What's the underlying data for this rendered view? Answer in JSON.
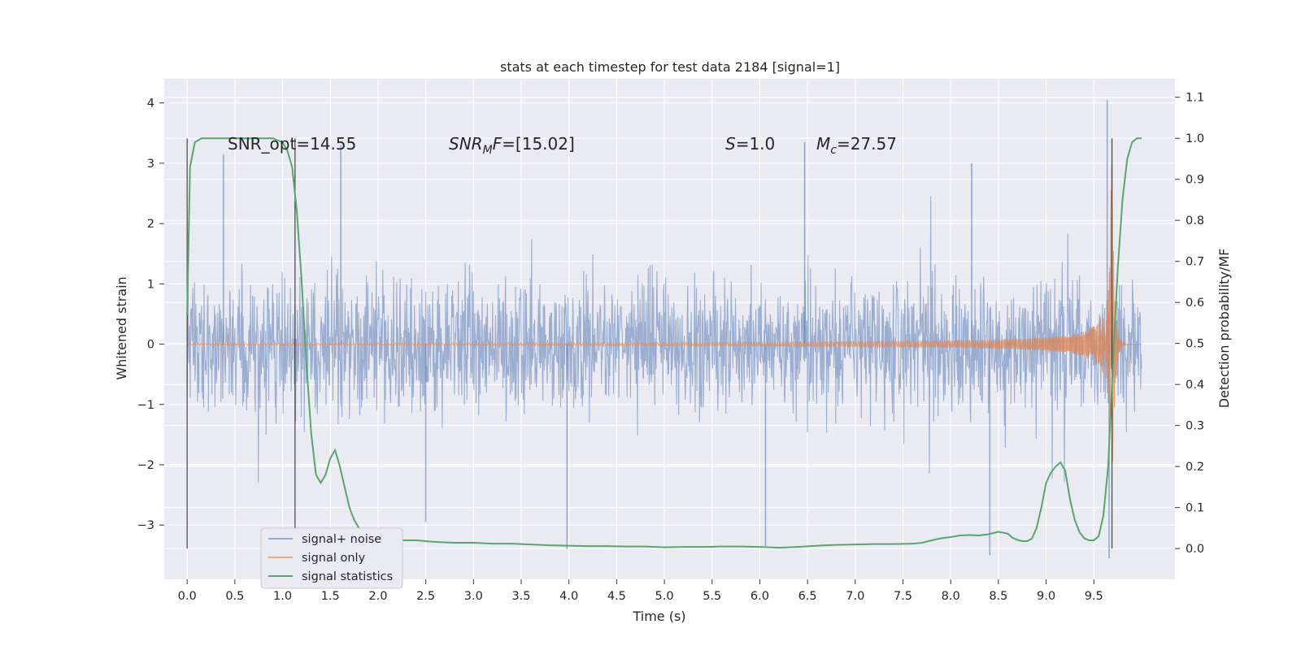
{
  "chart_data": {
    "type": "line",
    "title": "stats at each timestep for test data 2184 [signal=1]",
    "xlabel": "Time (s)",
    "ylabel": "Whitened strain",
    "y2label": "Detection probability/MF",
    "xlim": [
      -0.24,
      10.35
    ],
    "ylim": [
      -3.9,
      4.4
    ],
    "y2lim": [
      -0.075,
      1.145
    ],
    "x_ticks": [
      "0.0",
      "0.5",
      "1.0",
      "1.5",
      "2.0",
      "2.5",
      "3.0",
      "3.5",
      "4.0",
      "4.5",
      "5.0",
      "5.5",
      "6.0",
      "6.5",
      "7.0",
      "7.5",
      "8.0",
      "8.5",
      "9.0",
      "9.5"
    ],
    "y_ticks": [
      "−3",
      "−2",
      "−1",
      "0",
      "1",
      "2",
      "3",
      "4"
    ],
    "y2_ticks": [
      "0.0",
      "0.1",
      "0.2",
      "0.3",
      "0.4",
      "0.5",
      "0.6",
      "0.7",
      "0.8",
      "0.9",
      "1.0",
      "1.1"
    ],
    "annotations": {
      "snr_opt": "SNR_opt=14.55",
      "snr_mf_base": "SNR",
      "snr_mf_sub": "M",
      "snr_mf_rest": "F",
      "snr_mf_value": "=[15.02]",
      "s_label": "S",
      "s_value": "=1.0",
      "mc_base": "M",
      "mc_sub": "c",
      "mc_value": "=27.57"
    },
    "vertical_markers": [
      0.0,
      1.13,
      9.69
    ],
    "legend": {
      "position": "lower-left",
      "entries": [
        "signal+ noise",
        "signal only",
        "signal statistics"
      ]
    },
    "grid": true,
    "colors": {
      "background": "#eaeaf2",
      "grid": "#ffffff",
      "noise": "#4c72b0",
      "signal": "#dd8452",
      "statistics": "#55a868",
      "marker": "#333333"
    },
    "series": [
      {
        "name": "signal+ noise",
        "kind": "noisy-strain",
        "x_range": [
          0.0,
          10.0
        ],
        "typical_amplitude": 1.5,
        "peak_max": 4.05,
        "peak_min": -3.55
      },
      {
        "name": "signal only",
        "kind": "chirp",
        "x_range": [
          0.0,
          10.0
        ],
        "merger_time": 9.69,
        "peak_amplitude": 3.0
      },
      {
        "name": "signal statistics",
        "axis": "right",
        "x": [
          0.0,
          0.03,
          0.08,
          0.15,
          0.22,
          0.3,
          0.4,
          0.5,
          0.6,
          0.7,
          0.8,
          0.9,
          0.95,
          1.0,
          1.05,
          1.1,
          1.15,
          1.2,
          1.25,
          1.3,
          1.35,
          1.4,
          1.45,
          1.5,
          1.55,
          1.6,
          1.65,
          1.7,
          1.75,
          1.8,
          1.85,
          1.9,
          1.95,
          2.0,
          2.1,
          2.2,
          2.4,
          2.6,
          2.8,
          3.0,
          3.2,
          3.4,
          3.6,
          3.8,
          4.0,
          4.2,
          4.4,
          4.6,
          4.8,
          5.0,
          5.2,
          5.4,
          5.6,
          5.8,
          6.0,
          6.2,
          6.4,
          6.6,
          6.8,
          7.0,
          7.2,
          7.4,
          7.6,
          7.7,
          7.8,
          7.9,
          8.0,
          8.1,
          8.2,
          8.3,
          8.4,
          8.5,
          8.6,
          8.65,
          8.7,
          8.75,
          8.8,
          8.85,
          8.9,
          8.95,
          9.0,
          9.05,
          9.1,
          9.15,
          9.2,
          9.25,
          9.3,
          9.35,
          9.4,
          9.45,
          9.5,
          9.55,
          9.6,
          9.65,
          9.7,
          9.75,
          9.8,
          9.85,
          9.9,
          9.95,
          10.0
        ],
        "y": [
          0.57,
          0.93,
          0.99,
          1.0,
          1.0,
          1.0,
          1.0,
          1.0,
          1.0,
          1.0,
          1.0,
          1.0,
          0.995,
          0.99,
          0.97,
          0.93,
          0.82,
          0.65,
          0.45,
          0.28,
          0.18,
          0.16,
          0.18,
          0.22,
          0.24,
          0.2,
          0.15,
          0.1,
          0.07,
          0.05,
          0.04,
          0.035,
          0.03,
          0.025,
          0.022,
          0.02,
          0.02,
          0.016,
          0.014,
          0.014,
          0.012,
          0.012,
          0.01,
          0.008,
          0.007,
          0.006,
          0.006,
          0.005,
          0.005,
          0.003,
          0.004,
          0.004,
          0.005,
          0.005,
          0.004,
          0.002,
          0.004,
          0.007,
          0.009,
          0.01,
          0.011,
          0.011,
          0.012,
          0.014,
          0.02,
          0.025,
          0.028,
          0.032,
          0.033,
          0.032,
          0.035,
          0.041,
          0.036,
          0.026,
          0.021,
          0.018,
          0.018,
          0.024,
          0.05,
          0.1,
          0.16,
          0.185,
          0.2,
          0.21,
          0.19,
          0.12,
          0.07,
          0.04,
          0.025,
          0.02,
          0.02,
          0.03,
          0.08,
          0.2,
          0.45,
          0.68,
          0.85,
          0.95,
          0.99,
          1.0,
          1.0
        ]
      }
    ]
  }
}
